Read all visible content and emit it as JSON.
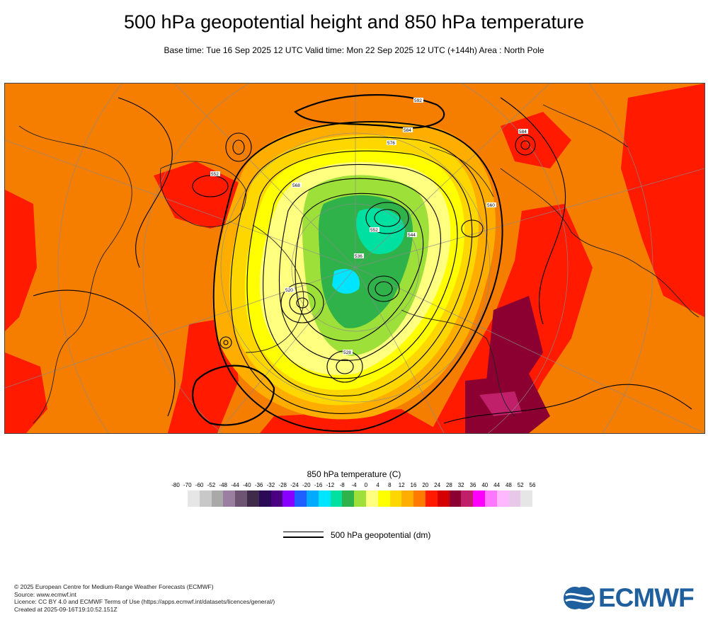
{
  "header": {
    "title": "500 hPa geopotential height and 850 hPa temperature",
    "subtitle": "Base time: Tue 16 Sep 2025 12 UTC Valid time: Mon 22 Sep 2025 12 UTC (+144h) Area : North Pole"
  },
  "map": {
    "contour_labels": [
      "592",
      "584",
      "576",
      "568",
      "560",
      "552",
      "544",
      "536",
      "528",
      "520",
      "584",
      "552"
    ]
  },
  "colorbar": {
    "title": "850 hPa temperature (C)",
    "ticks": [
      "-80",
      "-70",
      "-60",
      "-52",
      "-48",
      "-44",
      "-40",
      "-36",
      "-32",
      "-28",
      "-24",
      "-20",
      "-16",
      "-12",
      "-8",
      "-4",
      "0",
      "4",
      "8",
      "12",
      "16",
      "20",
      "24",
      "28",
      "32",
      "36",
      "40",
      "44",
      "48",
      "52",
      "56"
    ],
    "colors": [
      "#e6e6e6",
      "#c8c8c8",
      "#a9a9a9",
      "#9a7fa0",
      "#6c5472",
      "#3f2a4a",
      "#2a0a56",
      "#4b0082",
      "#8a00ff",
      "#1f5fff",
      "#00aaff",
      "#00e5ff",
      "#00e0a0",
      "#2fb24a",
      "#9ee03a",
      "#ffff80",
      "#ffff00",
      "#ffd700",
      "#ffae00",
      "#ff7b00",
      "#ff1a00",
      "#d40000",
      "#8b0030",
      "#c0206a",
      "#ff00ff",
      "#ff77ff",
      "#ffb8ff",
      "#e8c8e8",
      "#e6e6e6"
    ]
  },
  "legend": {
    "label": "500 hPa geopotential (dm)"
  },
  "footer": {
    "lines": [
      "© 2025 European Centre for Medium-Range Weather Forecasts (ECMWF)",
      "Source: www.ecmwf.int",
      "Licence: CC BY 4.0 and ECMWF Terms of Use (https://apps.ecmwf.int/datasets/licences/general/)",
      "Created at 2025-09-16T19:10:52.151Z"
    ]
  },
  "logo": {
    "text": "ECMWF",
    "color": "#1f5f9d"
  }
}
